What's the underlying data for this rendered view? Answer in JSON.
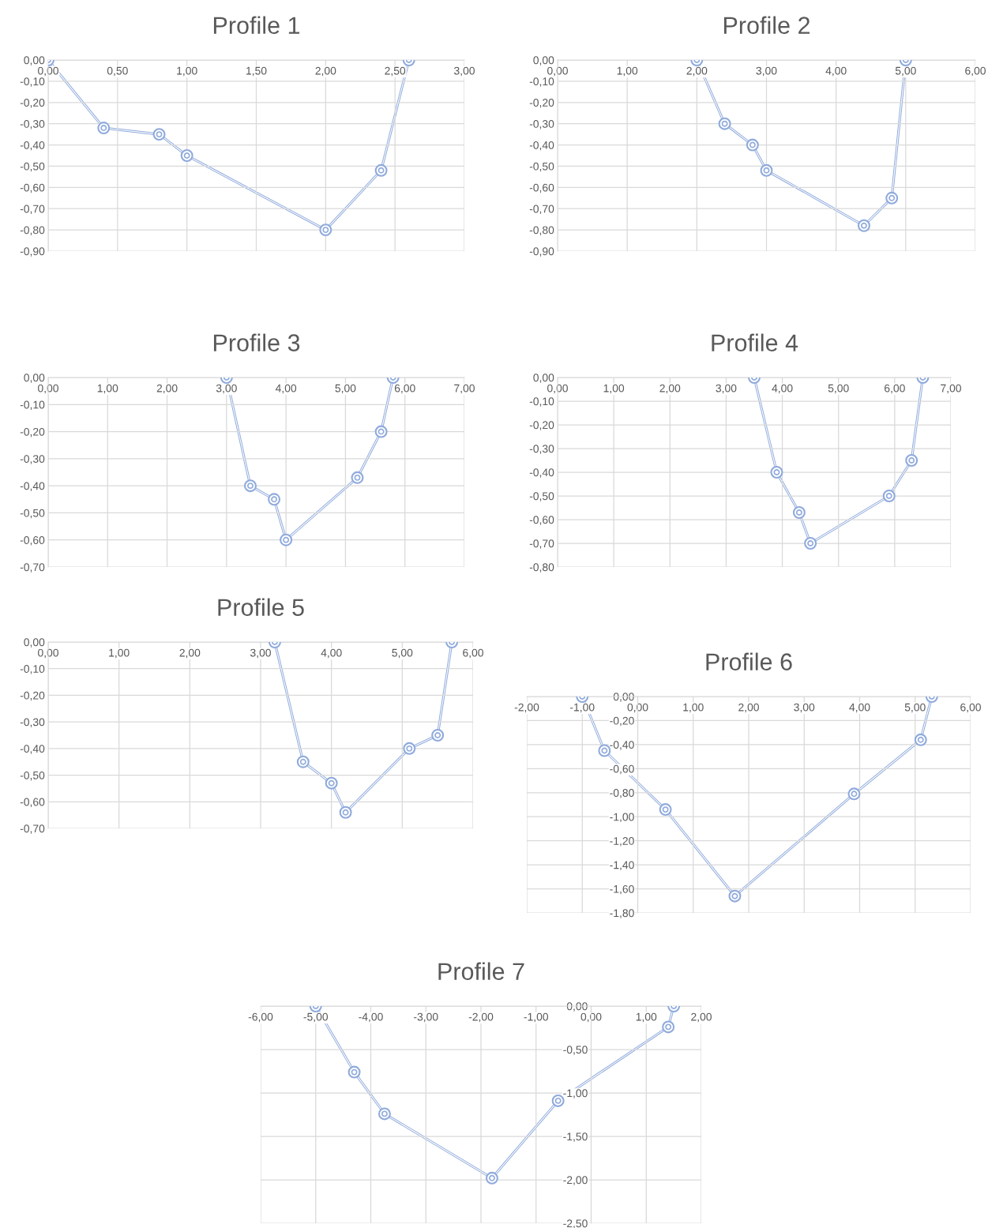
{
  "chart_data": [
    {
      "type": "line",
      "title": "Profile 1",
      "marker": "circle",
      "grid": true,
      "x": [
        0,
        0.4,
        0.8,
        1.0,
        2.0,
        2.4,
        2.6
      ],
      "series": [
        {
          "color": "#8faadc",
          "values": [
            0,
            -0.32,
            -0.35,
            -0.45,
            -0.8,
            -0.52,
            0
          ]
        }
      ],
      "xlim": [
        0,
        3
      ],
      "xticks": [
        {
          "value": 0,
          "label": "0,00"
        },
        {
          "value": 0.5,
          "label": "0,50"
        },
        {
          "value": 1,
          "label": "1,00"
        },
        {
          "value": 1.5,
          "label": "1,50"
        },
        {
          "value": 2,
          "label": "2,00"
        },
        {
          "value": 2.5,
          "label": "2,50"
        },
        {
          "value": 3,
          "label": "3,00"
        }
      ],
      "ylim": [
        -0.9,
        0
      ],
      "yticks": [
        {
          "value": 0,
          "label": "0,00"
        },
        {
          "value": -0.1,
          "label": "-0,10"
        },
        {
          "value": -0.2,
          "label": "-0,20"
        },
        {
          "value": -0.3,
          "label": "-0,30"
        },
        {
          "value": -0.4,
          "label": "-0,40"
        },
        {
          "value": -0.5,
          "label": "-0,50"
        },
        {
          "value": -0.6,
          "label": "-0,60"
        },
        {
          "value": -0.7,
          "label": "-0,70"
        },
        {
          "value": -0.8,
          "label": "-0,80"
        },
        {
          "value": -0.9,
          "label": "-0,90"
        }
      ]
    },
    {
      "type": "line",
      "title": "Profile 2",
      "marker": "circle",
      "grid": true,
      "x": [
        2.0,
        2.4,
        2.8,
        3.0,
        4.4,
        4.8,
        5.0
      ],
      "series": [
        {
          "color": "#8faadc",
          "values": [
            0,
            -0.3,
            -0.4,
            -0.52,
            -0.78,
            -0.65,
            0
          ]
        }
      ],
      "xlim": [
        0,
        6
      ],
      "xticks": [
        {
          "value": 0,
          "label": "0,00"
        },
        {
          "value": 1,
          "label": "1,00"
        },
        {
          "value": 2,
          "label": "2,00"
        },
        {
          "value": 3,
          "label": "3,00"
        },
        {
          "value": 4,
          "label": "4,00"
        },
        {
          "value": 5,
          "label": "5,00"
        },
        {
          "value": 6,
          "label": "6,00"
        }
      ],
      "ylim": [
        -0.9,
        0
      ],
      "yticks": [
        {
          "value": 0,
          "label": "0,00"
        },
        {
          "value": -0.1,
          "label": "-0,10"
        },
        {
          "value": -0.2,
          "label": "-0,20"
        },
        {
          "value": -0.3,
          "label": "-0,30"
        },
        {
          "value": -0.4,
          "label": "-0,40"
        },
        {
          "value": -0.5,
          "label": "-0,50"
        },
        {
          "value": -0.6,
          "label": "-0,60"
        },
        {
          "value": -0.7,
          "label": "-0,70"
        },
        {
          "value": -0.8,
          "label": "-0,80"
        },
        {
          "value": -0.9,
          "label": "-0,90"
        }
      ]
    },
    {
      "type": "line",
      "title": "Profile 3",
      "marker": "circle",
      "grid": true,
      "x": [
        3.0,
        3.4,
        3.8,
        4.0,
        5.2,
        5.6,
        5.8
      ],
      "series": [
        {
          "color": "#8faadc",
          "values": [
            0,
            -0.4,
            -0.45,
            -0.6,
            -0.37,
            -0.2,
            0
          ]
        }
      ],
      "xlim": [
        0,
        7
      ],
      "xticks": [
        {
          "value": 0,
          "label": "0,00"
        },
        {
          "value": 1,
          "label": "1,00"
        },
        {
          "value": 2,
          "label": "2,00"
        },
        {
          "value": 3,
          "label": "3,00"
        },
        {
          "value": 4,
          "label": "4,00"
        },
        {
          "value": 5,
          "label": "5,00"
        },
        {
          "value": 6,
          "label": "6,00"
        },
        {
          "value": 7,
          "label": "7,00"
        }
      ],
      "ylim": [
        -0.7,
        0
      ],
      "yticks": [
        {
          "value": 0,
          "label": "0,00"
        },
        {
          "value": -0.1,
          "label": "-0,10"
        },
        {
          "value": -0.2,
          "label": "-0,20"
        },
        {
          "value": -0.3,
          "label": "-0,30"
        },
        {
          "value": -0.4,
          "label": "-0,40"
        },
        {
          "value": -0.5,
          "label": "-0,50"
        },
        {
          "value": -0.6,
          "label": "-0,60"
        },
        {
          "value": -0.7,
          "label": "-0,70"
        }
      ]
    },
    {
      "type": "line",
      "title": "Profile 4",
      "marker": "circle",
      "grid": true,
      "x": [
        3.5,
        3.9,
        4.3,
        4.5,
        5.9,
        6.3,
        6.5
      ],
      "series": [
        {
          "color": "#8faadc",
          "values": [
            0,
            -0.4,
            -0.57,
            -0.7,
            -0.5,
            -0.35,
            0
          ]
        }
      ],
      "xlim": [
        0,
        7
      ],
      "xticks": [
        {
          "value": 0,
          "label": "0,00"
        },
        {
          "value": 1,
          "label": "1,00"
        },
        {
          "value": 2,
          "label": "2,00"
        },
        {
          "value": 3,
          "label": "3,00"
        },
        {
          "value": 4,
          "label": "4,00"
        },
        {
          "value": 5,
          "label": "5,00"
        },
        {
          "value": 6,
          "label": "6,00"
        },
        {
          "value": 7,
          "label": "7,00"
        }
      ],
      "ylim": [
        -0.8,
        0
      ],
      "yticks": [
        {
          "value": 0,
          "label": "0,00"
        },
        {
          "value": -0.1,
          "label": "-0,10"
        },
        {
          "value": -0.2,
          "label": "-0,20"
        },
        {
          "value": -0.3,
          "label": "-0,30"
        },
        {
          "value": -0.4,
          "label": "-0,40"
        },
        {
          "value": -0.5,
          "label": "-0,50"
        },
        {
          "value": -0.6,
          "label": "-0,60"
        },
        {
          "value": -0.7,
          "label": "-0,70"
        },
        {
          "value": -0.8,
          "label": "-0,80"
        }
      ]
    },
    {
      "type": "line",
      "title": "Profile 5",
      "marker": "circle",
      "grid": true,
      "x": [
        3.2,
        3.6,
        4.0,
        4.2,
        5.1,
        5.5,
        5.7
      ],
      "series": [
        {
          "color": "#8faadc",
          "values": [
            0,
            -0.45,
            -0.53,
            -0.64,
            -0.4,
            -0.35,
            0
          ]
        }
      ],
      "xlim": [
        0,
        6
      ],
      "xticks": [
        {
          "value": 0,
          "label": "0,00"
        },
        {
          "value": 1,
          "label": "1,00"
        },
        {
          "value": 2,
          "label": "2,00"
        },
        {
          "value": 3,
          "label": "3,00"
        },
        {
          "value": 4,
          "label": "4,00"
        },
        {
          "value": 5,
          "label": "5,00"
        },
        {
          "value": 6,
          "label": "6,00"
        }
      ],
      "ylim": [
        -0.7,
        0
      ],
      "yticks": [
        {
          "value": 0,
          "label": "0,00"
        },
        {
          "value": -0.1,
          "label": "-0,10"
        },
        {
          "value": -0.2,
          "label": "-0,20"
        },
        {
          "value": -0.3,
          "label": "-0,30"
        },
        {
          "value": -0.4,
          "label": "-0,40"
        },
        {
          "value": -0.5,
          "label": "-0,50"
        },
        {
          "value": -0.6,
          "label": "-0,60"
        },
        {
          "value": -0.7,
          "label": "-0,70"
        }
      ]
    },
    {
      "type": "line",
      "title": "Profile 6",
      "marker": "circle",
      "grid": true,
      "x": [
        -1.0,
        -0.6,
        0.5,
        1.75,
        3.9,
        5.1,
        5.3
      ],
      "series": [
        {
          "color": "#8faadc",
          "values": [
            0,
            -0.45,
            -0.94,
            -1.66,
            -0.81,
            -0.36,
            0
          ]
        }
      ],
      "xlim": [
        -2,
        6
      ],
      "xticks": [
        {
          "value": -2,
          "label": "-2,00"
        },
        {
          "value": -1,
          "label": "-1,00"
        },
        {
          "value": 0,
          "label": "0,00"
        },
        {
          "value": 1,
          "label": "1,00"
        },
        {
          "value": 2,
          "label": "2,00"
        },
        {
          "value": 3,
          "label": "3,00"
        },
        {
          "value": 4,
          "label": "4,00"
        },
        {
          "value": 5,
          "label": "5,00"
        },
        {
          "value": 6,
          "label": "6,00"
        }
      ],
      "ylim": [
        -1.8,
        0
      ],
      "yticks": [
        {
          "value": 0,
          "label": "0,00"
        },
        {
          "value": -0.2,
          "label": "-0,20"
        },
        {
          "value": -0.4,
          "label": "-0,40"
        },
        {
          "value": -0.6,
          "label": "-0,60"
        },
        {
          "value": -0.8,
          "label": "-0,80"
        },
        {
          "value": -1.0,
          "label": "-1,00"
        },
        {
          "value": -1.2,
          "label": "-1,20"
        },
        {
          "value": -1.4,
          "label": "-1,40"
        },
        {
          "value": -1.6,
          "label": "-1,60"
        },
        {
          "value": -1.8,
          "label": "-1,80"
        }
      ]
    },
    {
      "type": "line",
      "title": "Profile 7",
      "marker": "circle",
      "grid": true,
      "x": [
        -5.0,
        -4.3,
        -3.75,
        -1.8,
        -0.6,
        1.4,
        1.5
      ],
      "series": [
        {
          "color": "#8faadc",
          "values": [
            0,
            -0.76,
            -1.24,
            -1.98,
            -1.09,
            -0.24,
            0
          ]
        }
      ],
      "xlim": [
        -6,
        2
      ],
      "xticks": [
        {
          "value": -6,
          "label": "-6,00"
        },
        {
          "value": -5,
          "label": "-5,00"
        },
        {
          "value": -4,
          "label": "-4,00"
        },
        {
          "value": -3,
          "label": "-3,00"
        },
        {
          "value": -2,
          "label": "-2,00"
        },
        {
          "value": -1,
          "label": "-1,00"
        },
        {
          "value": 0,
          "label": "0,00"
        },
        {
          "value": 1,
          "label": "1,00"
        },
        {
          "value": 2,
          "label": "2,00"
        }
      ],
      "ylim": [
        -2.5,
        0
      ],
      "yticks": [
        {
          "value": 0,
          "label": "0,00"
        },
        {
          "value": -0.5,
          "label": "-0,50"
        },
        {
          "value": -1.0,
          "label": "-1,00"
        },
        {
          "value": -1.5,
          "label": "-1,50"
        },
        {
          "value": -2.0,
          "label": "-2,00"
        },
        {
          "value": -2.5,
          "label": "-2,50"
        }
      ]
    }
  ]
}
